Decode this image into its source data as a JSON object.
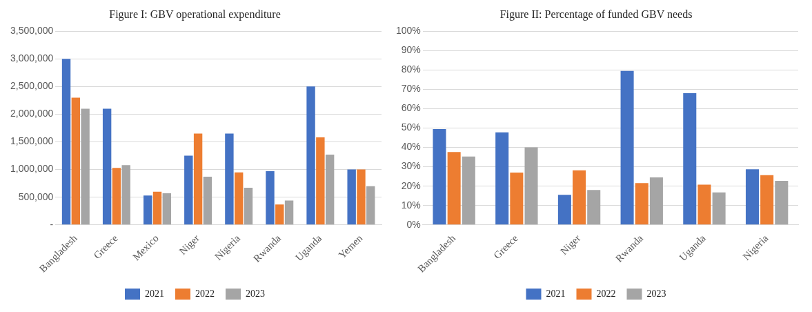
{
  "chart_data": [
    {
      "type": "bar",
      "title": "Figure I: GBV operational expenditure",
      "categories": [
        "Bangladesh",
        "Greece",
        "Mexico",
        "Niger",
        "Nigeria",
        "Rwanda",
        "Uganda",
        "Yemen"
      ],
      "series": [
        {
          "name": "2021",
          "color": "#4472c4",
          "values": [
            3000000,
            2100000,
            530000,
            1250000,
            1650000,
            970000,
            2500000,
            1000000
          ]
        },
        {
          "name": "2022",
          "color": "#ed7d31",
          "values": [
            2300000,
            1030000,
            600000,
            1650000,
            950000,
            370000,
            1580000,
            1000000
          ]
        },
        {
          "name": "2023",
          "color": "#a5a5a5",
          "values": [
            2100000,
            1080000,
            570000,
            870000,
            670000,
            440000,
            1270000,
            700000
          ]
        }
      ],
      "ylim": [
        0,
        3500000
      ],
      "yticks": [
        {
          "value": 0,
          "label": "-"
        },
        {
          "value": 500000,
          "label": "500,000"
        },
        {
          "value": 1000000,
          "label": "1,000,000"
        },
        {
          "value": 1500000,
          "label": "1,500,000"
        },
        {
          "value": 2000000,
          "label": "2,000,000"
        },
        {
          "value": 2500000,
          "label": "2,500,000"
        },
        {
          "value": 3000000,
          "label": "3,000,000"
        },
        {
          "value": 3500000,
          "label": "3,500,000"
        }
      ],
      "grid": "y",
      "legend": "bottom"
    },
    {
      "type": "bar",
      "title": "Figure II: Percentage of funded GBV needs",
      "categories": [
        "Bangladesh",
        "Greece",
        "Niger",
        "Rwanda",
        "Uganda",
        "Nigeria"
      ],
      "series": [
        {
          "name": "2021",
          "color": "#4472c4",
          "values": [
            49.5,
            47.8,
            15.5,
            79.5,
            68,
            28.7
          ]
        },
        {
          "name": "2022",
          "color": "#ed7d31",
          "values": [
            37.6,
            27,
            28.2,
            21.6,
            20.8,
            25.7
          ]
        },
        {
          "name": "2023",
          "color": "#a5a5a5",
          "values": [
            35.3,
            40,
            18,
            24.5,
            16.8,
            22.7
          ]
        }
      ],
      "ylim": [
        0,
        100
      ],
      "yticks": [
        {
          "value": 0,
          "label": "0%"
        },
        {
          "value": 10,
          "label": "10%"
        },
        {
          "value": 20,
          "label": "20%"
        },
        {
          "value": 30,
          "label": "30%"
        },
        {
          "value": 40,
          "label": "40%"
        },
        {
          "value": 50,
          "label": "50%"
        },
        {
          "value": 60,
          "label": "60%"
        },
        {
          "value": 70,
          "label": "70%"
        },
        {
          "value": 80,
          "label": "80%"
        },
        {
          "value": 90,
          "label": "90%"
        },
        {
          "value": 100,
          "label": "100%"
        }
      ],
      "grid": "y",
      "legend": "bottom"
    }
  ]
}
